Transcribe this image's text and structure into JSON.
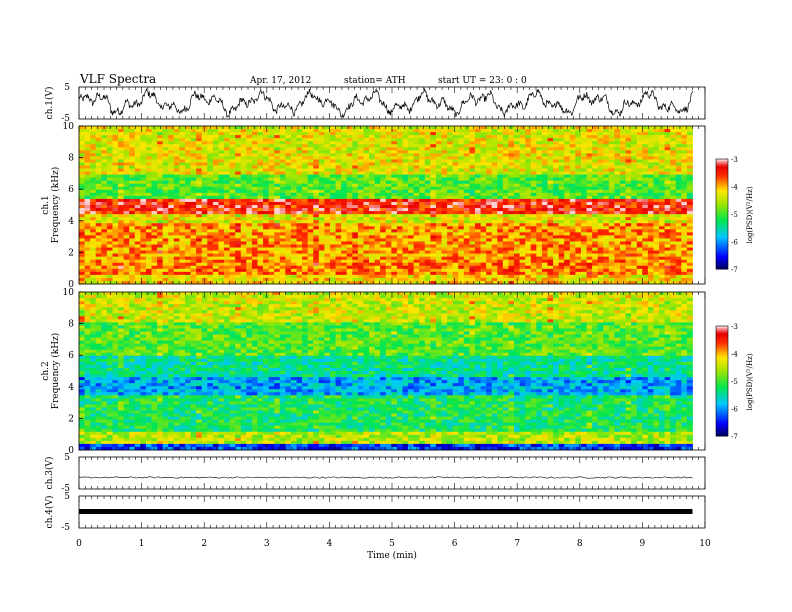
{
  "header": {
    "title": "VLF  Spectra",
    "date": "Apr. 17,  2012",
    "station": "station= ATH",
    "start": "start  UT  =    23: 0  : 0"
  },
  "chart_data": [
    {
      "type": "line",
      "panel": "ch1-waveform",
      "ylabel": "ch.1(V)",
      "yticks": [
        "5",
        "-5"
      ],
      "ylim": [
        -5,
        5
      ],
      "xlim": [
        0,
        10
      ],
      "series": [
        {
          "values": "continuous noisy waveform, range about -5 to 5 V, 0 to 9.8 min"
        }
      ]
    },
    {
      "type": "heatmap",
      "panel": "ch1-spectrogram",
      "ylabel_lines": [
        "ch.1",
        "Frequency  (kHz)"
      ],
      "yticks": [
        "0",
        "2",
        "4",
        "6",
        "8",
        "10"
      ],
      "ylim": [
        0,
        10
      ],
      "xlim": [
        0,
        9.8
      ],
      "colorbar": {
        "label": "log(PSD)(V²/Hz)",
        "ticks": [
          "-3",
          "-4",
          "-5",
          "-6",
          "-7"
        ],
        "range": [
          -7,
          -3
        ]
      },
      "bands_khz": [
        {
          "from": 0,
          "to": 0.5,
          "level": -4.2
        },
        {
          "from": 0.5,
          "to": 1.6,
          "level": -3.8
        },
        {
          "from": 1.6,
          "to": 3.8,
          "level": -3.9
        },
        {
          "from": 3.8,
          "to": 4.4,
          "level": -4.3
        },
        {
          "from": 4.4,
          "to": 5.3,
          "level": -3.4
        },
        {
          "from": 5.3,
          "to": 7.0,
          "level": -4.9
        },
        {
          "from": 7.0,
          "to": 10,
          "level": -4.3
        }
      ]
    },
    {
      "type": "heatmap",
      "panel": "ch2-spectrogram",
      "ylabel_lines": [
        "ch.2",
        "Frequency  (kHz)"
      ],
      "yticks": [
        "0",
        "2",
        "4",
        "6",
        "8",
        "10"
      ],
      "ylim": [
        0,
        10
      ],
      "xlim": [
        0,
        9.8
      ],
      "colorbar": {
        "label": "log(PSD)(V²/Hz)",
        "ticks": [
          "-3",
          "-4",
          "-5",
          "-6",
          "-7"
        ],
        "range": [
          -7,
          -3
        ]
      },
      "bands_khz": [
        {
          "from": 0,
          "to": 0.3,
          "level": -6.3
        },
        {
          "from": 0.3,
          "to": 1.2,
          "level": -4.5
        },
        {
          "from": 1.2,
          "to": 3.5,
          "level": -5.2
        },
        {
          "from": 3.5,
          "to": 4.7,
          "level": -5.9
        },
        {
          "from": 4.7,
          "to": 6.0,
          "level": -5.4
        },
        {
          "from": 6.0,
          "to": 8.0,
          "level": -4.9
        },
        {
          "from": 8.0,
          "to": 10,
          "level": -4.4
        }
      ]
    },
    {
      "type": "line",
      "panel": "ch3-waveform",
      "ylabel": "ch.3(V)",
      "yticks": [
        "5",
        "-5"
      ],
      "ylim": [
        -5,
        5
      ],
      "xlim": [
        0,
        10
      ],
      "series": [
        {
          "values": "nearly flat, about 0 V"
        }
      ]
    },
    {
      "type": "line",
      "panel": "ch4-waveform",
      "ylabel": "ch.4(V)",
      "yticks": [
        "5",
        "-5"
      ],
      "ylim": [
        -5,
        5
      ],
      "xlim": [
        0,
        10
      ],
      "xlabel": "Time  (min)",
      "xticks": [
        "0",
        "1",
        "2",
        "3",
        "4",
        "5",
        "6",
        "7",
        "8",
        "9",
        "10"
      ],
      "series": [
        {
          "values": "flat thick line, about 0 V"
        }
      ]
    }
  ]
}
